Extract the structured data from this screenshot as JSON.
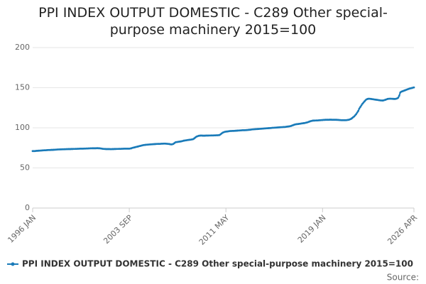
{
  "chart_data": {
    "type": "line",
    "title": "PPI INDEX OUTPUT DOMESTIC - C289 Other special-purpose machinery 2015=100",
    "source_label": "Source:",
    "categories": [
      "1996 JAN",
      null,
      null,
      null,
      null,
      null,
      null,
      null,
      null,
      null,
      null,
      null,
      null,
      null,
      null,
      null,
      null,
      null,
      null,
      null,
      null,
      null,
      null,
      null,
      null,
      null,
      null,
      null,
      null,
      null,
      null,
      null,
      null,
      null,
      null,
      null,
      null,
      null,
      null,
      null,
      null,
      null,
      null,
      null,
      null,
      null,
      null,
      null,
      null,
      null,
      null,
      null,
      null,
      null,
      null,
      null,
      null,
      null,
      null,
      null,
      null,
      null,
      null,
      null,
      null,
      null,
      null,
      null,
      null,
      null,
      null,
      null,
      null,
      null,
      null,
      null,
      null,
      null,
      null,
      null,
      null,
      null,
      null,
      null,
      null,
      null,
      null,
      null,
      null,
      null,
      null,
      null,
      "2003 SEP",
      null,
      null,
      null,
      null,
      null,
      null,
      null,
      null,
      null,
      null,
      null,
      null,
      null,
      null,
      null,
      null,
      null,
      null,
      null,
      null,
      null,
      null,
      null,
      null,
      null,
      null,
      null,
      null,
      null,
      null,
      null,
      null,
      null,
      null,
      null,
      null,
      null,
      null,
      null,
      null,
      null,
      null,
      null,
      null,
      null,
      null,
      null,
      null,
      null,
      null,
      null,
      null,
      null,
      null,
      null,
      null,
      null,
      null,
      null,
      null,
      null,
      null,
      null,
      null,
      null,
      null,
      null,
      null,
      null,
      null,
      null,
      null,
      null,
      null,
      null,
      null,
      null,
      null,
      null,
      null,
      null,
      null,
      null,
      null,
      null,
      null,
      null,
      null,
      null,
      null,
      null,
      "2011 MAY",
      null,
      null,
      null,
      null,
      null,
      null,
      null,
      null,
      null,
      null,
      null,
      null,
      null,
      null,
      null,
      null,
      null,
      null,
      null,
      null,
      null,
      null,
      null,
      null,
      null,
      null,
      null,
      null,
      null,
      null,
      null,
      null,
      null,
      null,
      null,
      null,
      null,
      null,
      null,
      null,
      null,
      null,
      null,
      null,
      null,
      null,
      null,
      null,
      null,
      null,
      null,
      null,
      null,
      null,
      null,
      null,
      null,
      null,
      null,
      null,
      null,
      null,
      null,
      null,
      null,
      null,
      null,
      null,
      null,
      null,
      null,
      null,
      null,
      null,
      null,
      null,
      null,
      null,
      null,
      null,
      null,
      null,
      null,
      null,
      null,
      null,
      null,
      null,
      null,
      null,
      null,
      "2019 JAN",
      null,
      null,
      null,
      null,
      null,
      null,
      null,
      null,
      null,
      null,
      null,
      null,
      null,
      null,
      null,
      null,
      null,
      null,
      null,
      null,
      null,
      null,
      null,
      null,
      null,
      null,
      null,
      null,
      null,
      null,
      null,
      null,
      null,
      null,
      null,
      null,
      null,
      null,
      null,
      null,
      null,
      null,
      null,
      null,
      null,
      null,
      null,
      null,
      null,
      null,
      null,
      null,
      null,
      null,
      null,
      null,
      null,
      null,
      null,
      null,
      null,
      null,
      null,
      null,
      null,
      null,
      null,
      null,
      null,
      null,
      null,
      null,
      null,
      null,
      null,
      null,
      null,
      null,
      null,
      null,
      null,
      null,
      null,
      null,
      null,
      null,
      "2026 APR"
    ],
    "series": [
      {
        "name": "PPI INDEX OUTPUT DOMESTIC - C289 Other special-purpose machinery 2015=100",
        "color": "#1a7bb9",
        "values": [
          71,
          71,
          71,
          71.2,
          71.3,
          71.4,
          71.5,
          71.6,
          71.7,
          71.8,
          71.9,
          72,
          72,
          72.1,
          72.2,
          72.3,
          72.3,
          72.4,
          72.5,
          72.5,
          72.6,
          72.7,
          72.8,
          72.9,
          73,
          73,
          73.1,
          73.1,
          73.2,
          73.2,
          73.3,
          73.3,
          73.4,
          73.4,
          73.5,
          73.5,
          73.5,
          73.6,
          73.6,
          73.7,
          73.7,
          73.8,
          73.8,
          73.9,
          73.9,
          74,
          74,
          74,
          74,
          74.1,
          74.1,
          74.2,
          74.2,
          74.3,
          74.3,
          74.4,
          74.4,
          74.5,
          74.5,
          74.5,
          74.5,
          74.6,
          74.6,
          74.5,
          74.4,
          74.2,
          74,
          73.8,
          73.7,
          73.6,
          73.5,
          73.5,
          73.5,
          73.5,
          73.4,
          73.4,
          73.5,
          73.5,
          73.6,
          73.6,
          73.7,
          73.7,
          73.8,
          73.8,
          73.8,
          73.9,
          73.9,
          74,
          74,
          74,
          74,
          74,
          74,
          74.2,
          74.5,
          75,
          75.3,
          75.6,
          76,
          76.3,
          76.6,
          77,
          77.3,
          77.6,
          78,
          78.3,
          78.5,
          78.7,
          78.9,
          79,
          79.1,
          79.2,
          79.3,
          79.4,
          79.5,
          79.6,
          79.7,
          79.8,
          79.9,
          80,
          80,
          80,
          80.1,
          80.2,
          80.2,
          80.3,
          80.3,
          80.2,
          80.1,
          80,
          79.8,
          79.5,
          79.3,
          79.5,
          80,
          81,
          82,
          82.2,
          82.4,
          82.6,
          82.8,
          83,
          83.3,
          83.6,
          84,
          84.2,
          84.4,
          84.6,
          84.8,
          85,
          85.2,
          85.4,
          85.6,
          86,
          87,
          88,
          89,
          89.5,
          90,
          90.2,
          90.3,
          90.3,
          90.2,
          90.2,
          90.2,
          90.3,
          90.3,
          90.3,
          90.4,
          90.4,
          90.5,
          90.5,
          90.5,
          90.6,
          90.6,
          90.7,
          90.7,
          90.8,
          91,
          92,
          93,
          94,
          94.5,
          95,
          95.2,
          95.4,
          95.6,
          95.8,
          96,
          96,
          96.1,
          96.1,
          96.2,
          96.3,
          96.4,
          96.5,
          96.6,
          96.7,
          96.8,
          96.9,
          97,
          97,
          97,
          97.1,
          97.2,
          97.3,
          97.5,
          97.6,
          97.8,
          98,
          98.1,
          98.2,
          98.3,
          98.4,
          98.5,
          98.6,
          98.7,
          98.8,
          98.9,
          99,
          99.1,
          99.2,
          99.3,
          99.4,
          99.5,
          99.6,
          99.7,
          99.8,
          100,
          100,
          100.1,
          100.2,
          100.3,
          100.4,
          100.5,
          100.6,
          100.7,
          100.8,
          100.9,
          101,
          101,
          101.2,
          101.4,
          101.6,
          101.8,
          102,
          102.3,
          102.8,
          103.3,
          103.8,
          104.2,
          104.5,
          104.6,
          104.8,
          105,
          105.2,
          105.4,
          105.6,
          105.8,
          106,
          106.3,
          106.6,
          107,
          107.5,
          108,
          108.4,
          108.7,
          109,
          109,
          109.1,
          109.2,
          109.2,
          109.3,
          109.4,
          109.5,
          109.6,
          109.7,
          109.8,
          109.9,
          110,
          110,
          110,
          110,
          110.1,
          110.1,
          110,
          110,
          110,
          110,
          110,
          109.9,
          109.8,
          109.7,
          109.6,
          109.5,
          109.5,
          109.5,
          109.5,
          109.5,
          109.6,
          109.8,
          110,
          110.5,
          111,
          112,
          113,
          114,
          115.5,
          117,
          119,
          121,
          124,
          126,
          128,
          130,
          131.5,
          133,
          134.5,
          135.5,
          136,
          136.3,
          136.2,
          136,
          135.8,
          135.6,
          135.4,
          135.2,
          135,
          134.8,
          134.6,
          134.4,
          134.2,
          134.1,
          134,
          134.2,
          134.6,
          135,
          135.5,
          136,
          136.2,
          136.3,
          136.3,
          136.2,
          136.1,
          136,
          136,
          136.2,
          136.6,
          137.5,
          140,
          144,
          145,
          145.5,
          146,
          146.5,
          147,
          147.5,
          148,
          148.5,
          149,
          149.3,
          149.6,
          150,
          150.3
        ]
      }
    ],
    "ylim": [
      0,
      200
    ],
    "yticks": [
      0,
      50,
      100,
      150,
      200
    ],
    "grid": true
  }
}
